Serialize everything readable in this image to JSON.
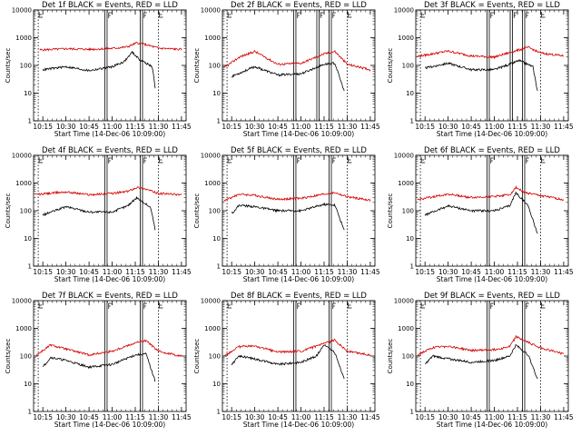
{
  "figure": {
    "panel_titles": [
      "Det 1f BLACK = Events, RED = LLD",
      "Det 2f BLACK = Events, RED = LLD",
      "Det 3f BLACK = Events, RED = LLD",
      "Det 4f BLACK = Events, RED = LLD",
      "Det 5f BLACK = Events, RED = LLD",
      "Det 6f BLACK = Events, RED = LLD",
      "Det 7f BLACK = Events, RED = LLD",
      "Det 8f BLACK = Events, RED = LLD",
      "Det 9f BLACK = Events, RED = LLD"
    ],
    "xlabel": "Start Time (14-Dec-06 10:09:00)",
    "ylabel": "Counts/sec",
    "x_tick_labels": [
      "10:15",
      "10:30",
      "10:45",
      "11:00",
      "11:15",
      "11:30",
      "11:45"
    ],
    "y_tick_labels": [
      "1",
      "10",
      "100",
      "1000",
      "10000"
    ],
    "interval_markers": {
      "E": [
        "10:12",
        "11:30"
      ],
      "F": [
        "10:56",
        "11:19"
      ],
      "F_extra_for_panels": [
        2,
        3
      ],
      "F_extra": "11:11"
    },
    "colors": {
      "events": "#000000",
      "lld": "#d40000"
    }
  },
  "chart_data": {
    "type": "line",
    "x_range": [
      "10:09",
      "11:48"
    ],
    "y_scale": "log",
    "y_range": [
      1,
      10000
    ],
    "grid": false,
    "panels": [
      {
        "title": "Det 1f BLACK = Events, RED = LLD",
        "series": [
          {
            "name": "RED = LLD",
            "color": "#d40000",
            "x": [
              "10:13",
              "10:30",
              "10:45",
              "11:00",
              "11:10",
              "11:16",
              "11:22",
              "11:30",
              "11:40",
              "11:45"
            ],
            "y": [
              360,
              400,
              380,
              410,
              470,
              650,
              560,
              420,
              390,
              380
            ]
          },
          {
            "name": "BLACK = Events",
            "color": "#000000",
            "x": [
              "10:15",
              "10:30",
              "10:45",
              "11:00",
              "11:08",
              "11:13",
              "11:18",
              "11:26",
              "11:28"
            ],
            "y": [
              70,
              90,
              65,
              90,
              140,
              300,
              160,
              90,
              15
            ]
          }
        ]
      },
      {
        "title": "Det 2f BLACK = Events, RED = LLD",
        "series": [
          {
            "name": "RED = LLD",
            "color": "#d40000",
            "x": [
              "10:10",
              "10:20",
              "10:30",
              "10:45",
              "11:00",
              "11:15",
              "11:22",
              "11:30",
              "11:45"
            ],
            "y": [
              80,
              200,
              320,
              110,
              120,
              260,
              320,
              110,
              70
            ]
          },
          {
            "name": "BLACK = Events",
            "color": "#000000",
            "x": [
              "10:15",
              "10:30",
              "10:45",
              "11:00",
              "11:15",
              "11:22",
              "11:28"
            ],
            "y": [
              40,
              90,
              45,
              50,
              110,
              120,
              12
            ]
          }
        ]
      },
      {
        "title": "Det 3f BLACK = Events, RED = LLD",
        "series": [
          {
            "name": "RED = LLD",
            "color": "#d40000",
            "x": [
              "10:10",
              "10:30",
              "10:45",
              "11:00",
              "11:15",
              "11:22",
              "11:30",
              "11:45"
            ],
            "y": [
              210,
              330,
              220,
              200,
              350,
              450,
              280,
              220
            ]
          },
          {
            "name": "BLACK = Events",
            "color": "#000000",
            "x": [
              "10:15",
              "10:30",
              "10:45",
              "11:00",
              "11:10",
              "11:16",
              "11:25",
              "11:28"
            ],
            "y": [
              80,
              120,
              70,
              70,
              110,
              150,
              90,
              12
            ]
          }
        ]
      },
      {
        "title": "Det 4f BLACK = Events, RED = LLD",
        "series": [
          {
            "name": "RED = LLD",
            "color": "#d40000",
            "x": [
              "10:10",
              "10:30",
              "10:45",
              "11:00",
              "11:10",
              "11:16",
              "11:22",
              "11:30",
              "11:45"
            ],
            "y": [
              380,
              480,
              380,
              420,
              500,
              700,
              600,
              420,
              380
            ]
          },
          {
            "name": "BLACK = Events",
            "color": "#000000",
            "x": [
              "10:15",
              "10:30",
              "10:45",
              "11:00",
              "11:10",
              "11:16",
              "11:25",
              "11:28"
            ],
            "y": [
              70,
              140,
              90,
              90,
              150,
              300,
              130,
              20
            ]
          }
        ]
      },
      {
        "title": "Det 5f BLACK = Events, RED = LLD",
        "series": [
          {
            "name": "RED = LLD",
            "color": "#d40000",
            "x": [
              "10:10",
              "10:20",
              "10:30",
              "10:45",
              "11:00",
              "11:15",
              "11:22",
              "11:30",
              "11:45"
            ],
            "y": [
              230,
              400,
              360,
              260,
              280,
              400,
              450,
              320,
              240
            ]
          },
          {
            "name": "BLACK = Events",
            "color": "#000000",
            "x": [
              "10:15",
              "10:20",
              "10:30",
              "10:45",
              "11:00",
              "11:15",
              "11:22",
              "11:28"
            ],
            "y": [
              80,
              160,
              140,
              100,
              100,
              170,
              160,
              20
            ]
          }
        ]
      },
      {
        "title": "Det 6f BLACK = Events, RED = LLD",
        "series": [
          {
            "name": "RED = LLD",
            "color": "#d40000",
            "x": [
              "10:10",
              "10:30",
              "10:45",
              "11:00",
              "11:10",
              "11:14",
              "11:20",
              "11:30",
              "11:45"
            ],
            "y": [
              250,
              400,
              300,
              330,
              380,
              700,
              450,
              350,
              250
            ]
          },
          {
            "name": "BLACK = Events",
            "color": "#000000",
            "x": [
              "10:15",
              "10:30",
              "10:45",
              "11:00",
              "11:10",
              "11:14",
              "11:22",
              "11:28"
            ],
            "y": [
              70,
              150,
              100,
              100,
              150,
              450,
              150,
              15
            ]
          }
        ]
      },
      {
        "title": "Det 7f BLACK = Events, RED = LLD",
        "series": [
          {
            "name": "RED = LLD",
            "color": "#d40000",
            "x": [
              "10:10",
              "10:20",
              "10:30",
              "10:45",
              "11:00",
              "11:15",
              "11:22",
              "11:30",
              "11:45"
            ],
            "y": [
              100,
              250,
              180,
              110,
              150,
              300,
              360,
              150,
              100
            ]
          },
          {
            "name": "BLACK = Events",
            "color": "#000000",
            "x": [
              "10:15",
              "10:20",
              "10:30",
              "10:45",
              "11:00",
              "11:15",
              "11:22",
              "11:28"
            ],
            "y": [
              40,
              90,
              70,
              40,
              50,
              110,
              120,
              12
            ]
          }
        ]
      },
      {
        "title": "Det 8f BLACK = Events, RED = LLD",
        "series": [
          {
            "name": "RED = LLD",
            "color": "#d40000",
            "x": [
              "10:10",
              "10:20",
              "10:30",
              "10:45",
              "11:00",
              "11:15",
              "11:22",
              "11:30",
              "11:45"
            ],
            "y": [
              100,
              220,
              230,
              140,
              150,
              280,
              380,
              150,
              110
            ]
          },
          {
            "name": "BLACK = Events",
            "color": "#000000",
            "x": [
              "10:15",
              "10:20",
              "10:30",
              "10:45",
              "11:00",
              "11:10",
              "11:15",
              "11:22",
              "11:28"
            ],
            "y": [
              50,
              100,
              80,
              50,
              60,
              100,
              260,
              130,
              15
            ]
          }
        ]
      },
      {
        "title": "Det 9f BLACK = Events, RED = LLD",
        "series": [
          {
            "name": "RED = LLD",
            "color": "#d40000",
            "x": [
              "10:10",
              "10:20",
              "10:30",
              "10:45",
              "11:00",
              "11:10",
              "11:14",
              "11:20",
              "11:30",
              "11:45"
            ],
            "y": [
              110,
              200,
              230,
              160,
              170,
              220,
              500,
              350,
              200,
              120
            ]
          },
          {
            "name": "BLACK = Events",
            "color": "#000000",
            "x": [
              "10:15",
              "10:20",
              "10:30",
              "10:45",
              "11:00",
              "11:10",
              "11:14",
              "11:22",
              "11:28"
            ],
            "y": [
              50,
              100,
              80,
              60,
              70,
              100,
              250,
              110,
              15
            ]
          }
        ]
      }
    ]
  }
}
